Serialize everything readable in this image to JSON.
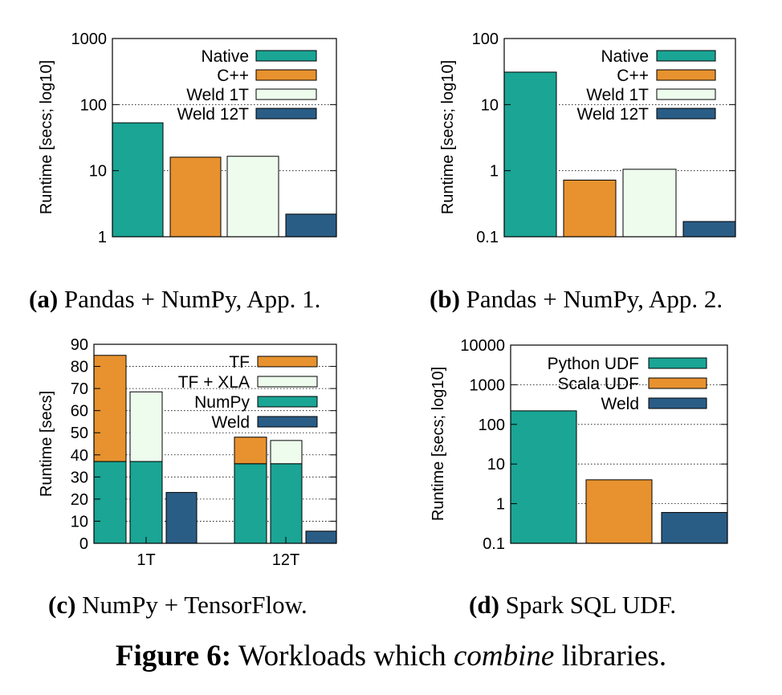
{
  "colors": {
    "native": "#1aa595",
    "cpp": "#e7922f",
    "weld1t": "#eefcee",
    "weld12t": "#2a5d86"
  },
  "captions": {
    "a": {
      "label": "(a)",
      "text": " Pandas + NumPy, App. 1."
    },
    "b": {
      "label": "(b)",
      "text": " Pandas + NumPy, App. 2."
    },
    "c": {
      "label": "(c)",
      "text": " NumPy + TensorFlow."
    },
    "d": {
      "label": "(d)",
      "text": " Spark SQL UDF."
    }
  },
  "figure_caption": {
    "label": "Figure 6:",
    "pre": " Workloads which ",
    "emph": "combine",
    "post": " libraries."
  },
  "chart_data": [
    {
      "id": "a",
      "type": "bar",
      "scale": "log",
      "ylabel": "Runtime [secs; log10]",
      "ylim": [
        1,
        1000
      ],
      "yticks": [
        1,
        10,
        100,
        1000
      ],
      "ytick_labels": [
        "1",
        "10",
        "100",
        "1000"
      ],
      "legend_position": "top-right",
      "grid": true,
      "series": [
        {
          "name": "Native",
          "color_key": "native",
          "value": 53
        },
        {
          "name": "C++",
          "color_key": "cpp",
          "value": 16
        },
        {
          "name": "Weld 1T",
          "color_key": "weld1t",
          "value": 16.5
        },
        {
          "name": "Weld 12T",
          "color_key": "weld12t",
          "value": 2.2
        }
      ]
    },
    {
      "id": "b",
      "type": "bar",
      "scale": "log",
      "ylabel": "Runtime [secs; log10]",
      "ylim": [
        0.1,
        100
      ],
      "yticks": [
        0.1,
        1,
        10,
        100
      ],
      "ytick_labels": [
        "0.1",
        "1",
        "10",
        "100"
      ],
      "legend_position": "top-right",
      "grid": true,
      "series": [
        {
          "name": "Native",
          "color_key": "native",
          "value": 31
        },
        {
          "name": "C++",
          "color_key": "cpp",
          "value": 0.72
        },
        {
          "name": "Weld 1T",
          "color_key": "weld1t",
          "value": 1.05
        },
        {
          "name": "Weld 12T",
          "color_key": "weld12t",
          "value": 0.17
        }
      ]
    },
    {
      "id": "c",
      "type": "bar",
      "scale": "linear",
      "stacked": true,
      "ylabel": "Runtime [secs]",
      "ylim": [
        0,
        90
      ],
      "yticks": [
        0,
        10,
        20,
        30,
        40,
        50,
        60,
        70,
        80,
        90
      ],
      "ytick_labels": [
        "0",
        "10",
        "20",
        "30",
        "40",
        "50",
        "60",
        "70",
        "80",
        "90"
      ],
      "categories": [
        "1T",
        "12T"
      ],
      "legend_position": "top-right",
      "grid": true,
      "legend": [
        {
          "name": "TF",
          "color_key": "cpp"
        },
        {
          "name": "TF + XLA",
          "color_key": "weld1t"
        },
        {
          "name": "NumPy",
          "color_key": "native"
        },
        {
          "name": "Weld",
          "color_key": "weld12t"
        }
      ],
      "bars": [
        {
          "category": "1T",
          "label": "TF",
          "segments": [
            {
              "name": "NumPy",
              "color_key": "native",
              "value": 37
            },
            {
              "name": "TF",
              "color_key": "cpp",
              "value": 48
            }
          ]
        },
        {
          "category": "1T",
          "label": "TF + XLA",
          "segments": [
            {
              "name": "NumPy",
              "color_key": "native",
              "value": 37
            },
            {
              "name": "TF + XLA",
              "color_key": "weld1t",
              "value": 31.5
            }
          ]
        },
        {
          "category": "1T",
          "label": "Weld",
          "segments": [
            {
              "name": "Weld",
              "color_key": "weld12t",
              "value": 23
            }
          ]
        },
        {
          "category": "12T",
          "label": "TF",
          "segments": [
            {
              "name": "NumPy",
              "color_key": "native",
              "value": 36
            },
            {
              "name": "TF",
              "color_key": "cpp",
              "value": 12
            }
          ]
        },
        {
          "category": "12T",
          "label": "TF + XLA",
          "segments": [
            {
              "name": "NumPy",
              "color_key": "native",
              "value": 36
            },
            {
              "name": "TF + XLA",
              "color_key": "weld1t",
              "value": 10.5
            }
          ]
        },
        {
          "category": "12T",
          "label": "Weld",
          "segments": [
            {
              "name": "Weld",
              "color_key": "weld12t",
              "value": 5.5
            }
          ]
        }
      ]
    },
    {
      "id": "d",
      "type": "bar",
      "scale": "log",
      "ylabel": "Runtime [secs; log10]",
      "ylim": [
        0.1,
        10000
      ],
      "yticks": [
        0.1,
        1,
        10,
        100,
        1000,
        10000
      ],
      "ytick_labels": [
        "0.1",
        "1",
        "10",
        "100",
        "1000",
        "10000"
      ],
      "legend_position": "top-right",
      "grid": true,
      "series": [
        {
          "name": "Python UDF",
          "color_key": "native",
          "value": 220
        },
        {
          "name": "Scala UDF",
          "color_key": "cpp",
          "value": 4
        },
        {
          "name": "Weld",
          "color_key": "weld12t",
          "value": 0.6
        }
      ]
    }
  ]
}
